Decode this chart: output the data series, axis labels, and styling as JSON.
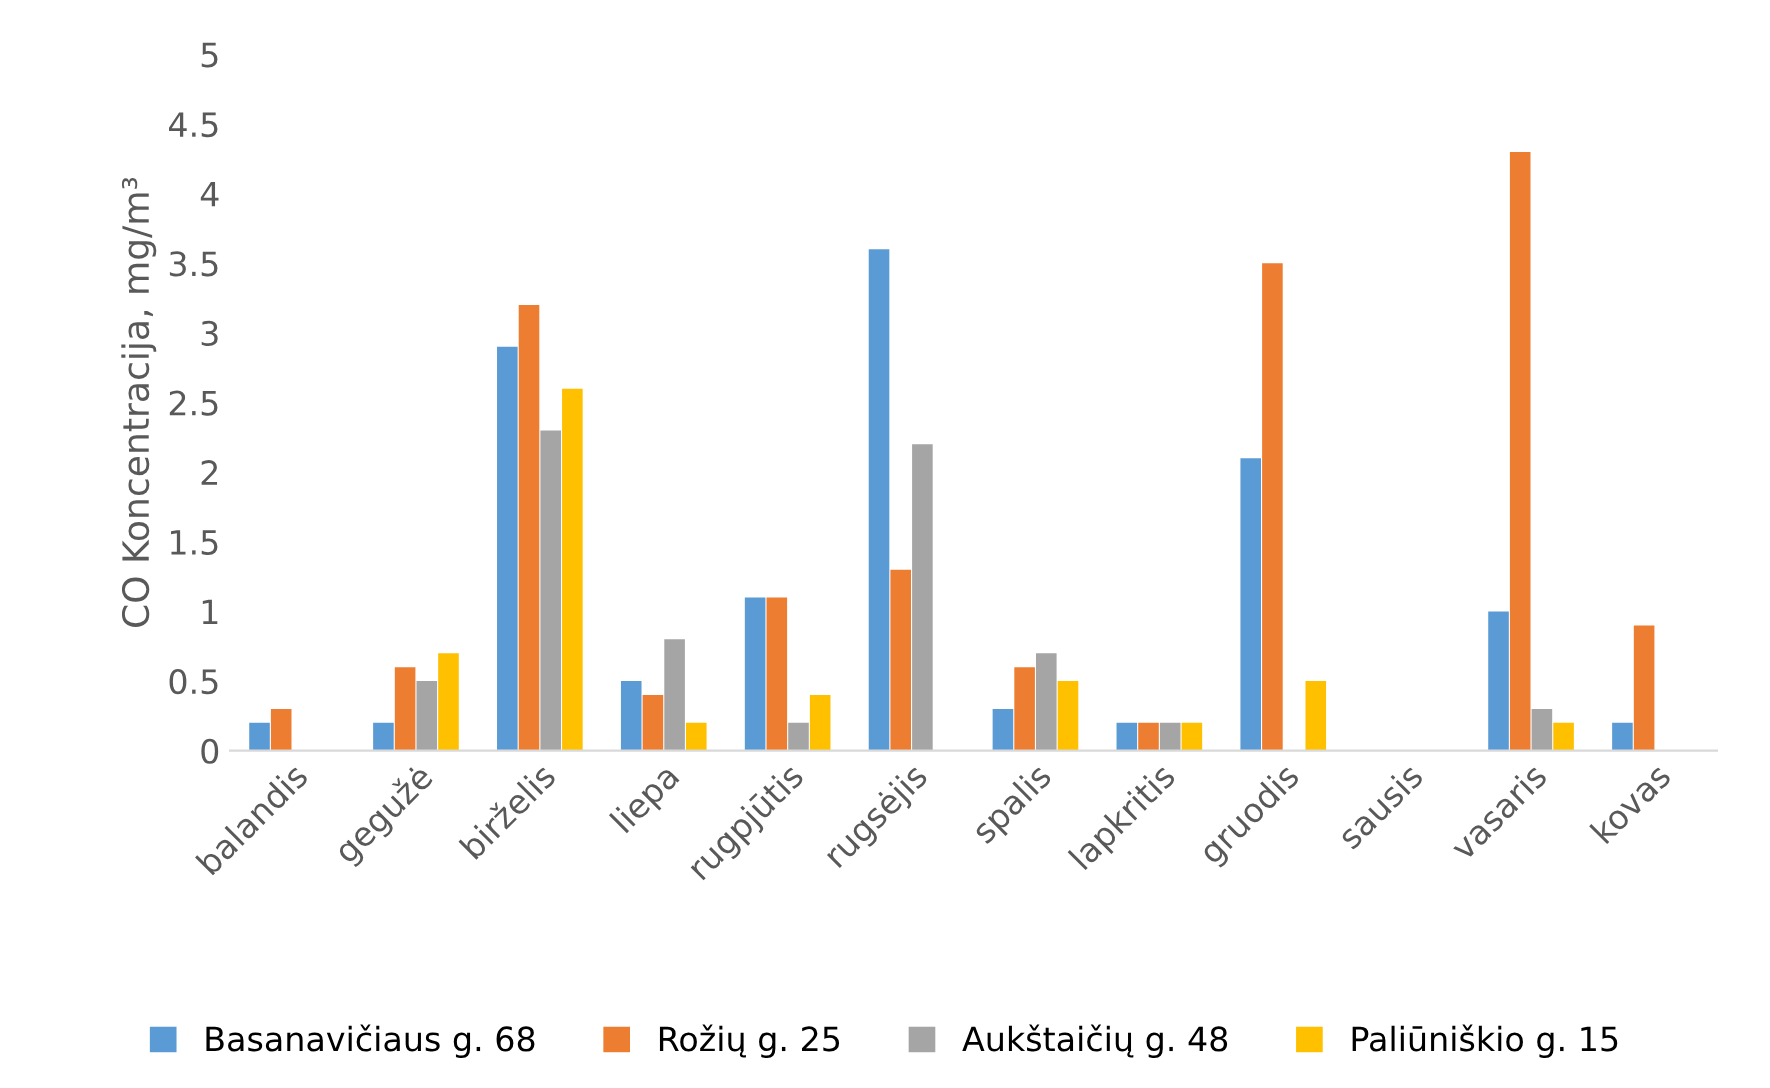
{
  "chart_data": {
    "type": "bar",
    "ylabel": "CO Koncentracija, mg/m³",
    "categories": [
      "balandis",
      "gegužė",
      "birželis",
      "liepa",
      "rugpjūtis",
      "rugsėjis",
      "spalis",
      "lapkritis",
      "gruodis",
      "sausis",
      "vasaris",
      "kovas"
    ],
    "series": [
      {
        "name": "Basanavičiaus g. 68",
        "color": "#5b9bd5",
        "values": [
          0.2,
          0.2,
          2.9,
          0.5,
          1.1,
          3.6,
          0.3,
          0.2,
          2.1,
          null,
          1.0,
          0.2
        ]
      },
      {
        "name": "Rožių g. 25",
        "color": "#ed7d31",
        "values": [
          0.3,
          0.6,
          3.2,
          0.4,
          1.1,
          1.3,
          0.6,
          0.2,
          3.5,
          null,
          4.3,
          0.9
        ]
      },
      {
        "name": "Aukštaičių g. 48",
        "color": "#a5a5a5",
        "values": [
          null,
          0.5,
          2.3,
          0.8,
          0.2,
          2.2,
          0.7,
          0.2,
          null,
          null,
          0.3,
          null
        ]
      },
      {
        "name": "Paliūniškio g. 15",
        "color": "#ffc000",
        "values": [
          null,
          0.7,
          2.6,
          0.2,
          0.4,
          null,
          0.5,
          0.2,
          0.5,
          null,
          0.2,
          null
        ]
      }
    ],
    "ylim": [
      0,
      5
    ],
    "yticks": [
      0,
      0.5,
      1,
      1.5,
      2,
      2.5,
      3,
      3.5,
      4,
      4.5,
      5
    ],
    "grid": false,
    "legend": "bottom"
  }
}
